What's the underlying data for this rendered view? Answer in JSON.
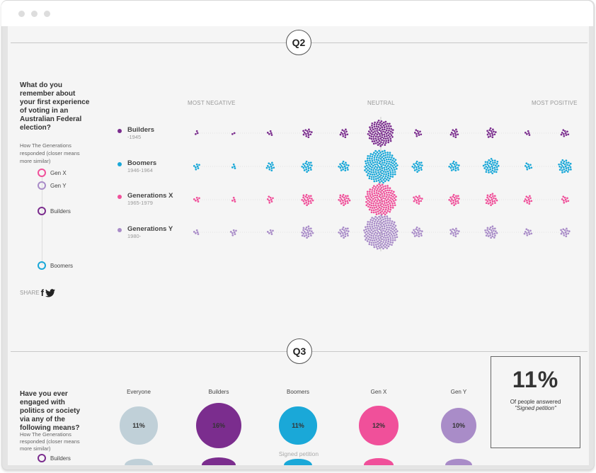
{
  "q2": {
    "badge": "Q2",
    "question": "What do you remember about your first experience of voting in an Australian Federal election?",
    "subtitle": "How The Generations responded (closer means more similar)",
    "similarity_legend": [
      {
        "label": "Gen X",
        "color": "#f0509a"
      },
      {
        "label": "Gen Y",
        "color": "#a98cc8"
      },
      {
        "label": "Builders",
        "color": "#7b2d8e"
      },
      {
        "label": "Boomers",
        "color": "#1aa8d8"
      }
    ],
    "share_label": "SHARE",
    "share_icons": [
      "facebook-icon",
      "twitter-icon"
    ],
    "axis": {
      "left": "MOST NEGATIVE",
      "center": "NEUTRAL",
      "right": "MOST POSITIVE"
    },
    "generations": [
      {
        "name": "Builders",
        "years": "-1945",
        "color": "#7b2d8e"
      },
      {
        "name": "Boomers",
        "years": "1946-1964",
        "color": "#1aa8d8"
      },
      {
        "name": "Generations X",
        "years": "1965-1979",
        "color": "#f0509a"
      },
      {
        "name": "Generations Y",
        "years": "1980-",
        "color": "#a98cc8"
      }
    ]
  },
  "chart_data": {
    "type": "scatter",
    "style": "beeswarm clusters, one dot per respondent",
    "x_scale": [
      "MOST NEGATIVE",
      "",
      "",
      "",
      "",
      "NEUTRAL",
      "",
      "",
      "",
      "",
      "MOST POSITIVE"
    ],
    "series": [
      {
        "name": "Builders",
        "counts": [
          3,
          2,
          5,
          14,
          12,
          110,
          9,
          12,
          16,
          5,
          10
        ]
      },
      {
        "name": "Boomers",
        "counts": [
          7,
          4,
          12,
          20,
          18,
          180,
          20,
          18,
          40,
          9,
          30
        ]
      },
      {
        "name": "Generations X",
        "counts": [
          6,
          4,
          8,
          22,
          22,
          160,
          14,
          20,
          24,
          12,
          9
        ]
      },
      {
        "name": "Generations Y",
        "counts": [
          5,
          7,
          6,
          24,
          20,
          190,
          18,
          14,
          26,
          10,
          14
        ]
      }
    ]
  },
  "q3": {
    "badge": "Q3",
    "question": "Have you ever engaged with politics or society via any of the following means?",
    "subtitle": "How The Generations responded (closer means more similar)",
    "legend_first": "Builders",
    "columns": [
      {
        "label": "Everyone",
        "value": "11%",
        "pct": 11,
        "color": "#c0d0d8"
      },
      {
        "label": "Builders",
        "value": "16%",
        "pct": 16,
        "color": "#7b2d8e"
      },
      {
        "label": "Boomers",
        "value": "11%",
        "pct": 11,
        "color": "#1aa8d8"
      },
      {
        "label": "Gen X",
        "value": "12%",
        "pct": 12,
        "color": "#f0509a"
      },
      {
        "label": "Gen Y",
        "value": "10%",
        "pct": 10,
        "color": "#a98cc8"
      }
    ],
    "row_label": "Signed petition",
    "summary": {
      "big": "11%",
      "text": "Of people answered",
      "answer": "\"Signed petition\""
    }
  }
}
